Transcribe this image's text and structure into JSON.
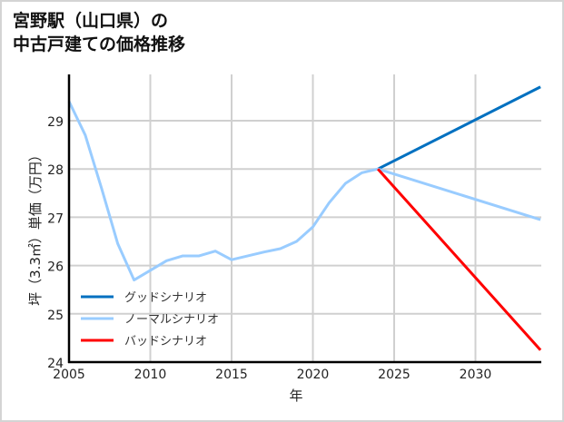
{
  "title_line1": "宮野駅（山口県）の",
  "title_line2": "中古戸建ての価格推移",
  "chart_data": {
    "type": "line",
    "title": "宮野駅（山口県）の中古戸建ての価格推移",
    "xlabel": "年",
    "ylabel": "坪（3.3㎡）単価（万円）",
    "xlim": [
      2005,
      2034
    ],
    "ylim": [
      24,
      29.8
    ],
    "x_ticks": [
      2005,
      2010,
      2015,
      2020,
      2025,
      2030
    ],
    "y_ticks": [
      24,
      25,
      26,
      27,
      28,
      29
    ],
    "grid": true,
    "legend_position": "lower left",
    "series": [
      {
        "name": "グッドシナリオ",
        "color": "#0070c0",
        "x": [
          2024,
          2034
        ],
        "values": [
          28.0,
          29.7
        ]
      },
      {
        "name": "ノーマルシナリオ",
        "color": "#99ccff",
        "x": [
          2005,
          2006,
          2007,
          2008,
          2009,
          2010,
          2011,
          2012,
          2013,
          2014,
          2015,
          2016,
          2017,
          2018,
          2019,
          2020,
          2021,
          2022,
          2023,
          2024,
          2034
        ],
        "values": [
          29.4,
          28.7,
          27.6,
          26.45,
          25.7,
          25.9,
          26.1,
          26.2,
          26.2,
          26.3,
          26.12,
          26.2,
          26.28,
          26.35,
          26.5,
          26.8,
          27.3,
          27.7,
          27.92,
          28.0,
          26.95
        ]
      },
      {
        "name": "バッドシナリオ",
        "color": "#ff0000",
        "x": [
          2024,
          2034
        ],
        "values": [
          28.0,
          24.25
        ]
      }
    ]
  }
}
